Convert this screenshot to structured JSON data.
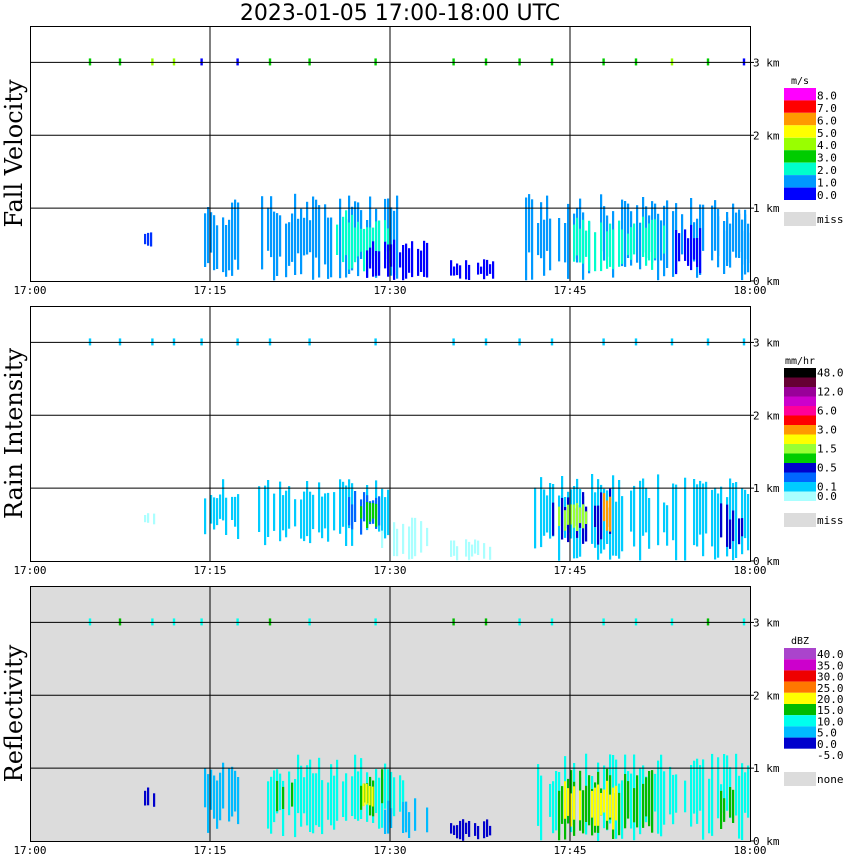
{
  "title": "2023-01-05  17:00-18:00 UTC",
  "colors": {
    "panel_bg_default": "#ffffff",
    "panel_bg_reflectivity": "#dcdcdc",
    "grid": "#000000"
  },
  "x_axis": {
    "ticks": [
      "17:00",
      "17:15",
      "17:30",
      "17:45",
      "18:00"
    ],
    "domain_minutes": [
      0,
      60
    ]
  },
  "y_axis": {
    "ticks": [
      "0 km",
      "1 km",
      "2 km",
      "3 km"
    ],
    "domain_km": [
      0,
      3.5
    ]
  },
  "chart_data": [
    {
      "type": "heatmap",
      "ylabel": "Fall Velocity",
      "legend_unit": "m/s",
      "legend": [
        {
          "label": "8.0",
          "color": "#ff00ff"
        },
        {
          "label": "7.0",
          "color": "#ff0000"
        },
        {
          "label": "6.0",
          "color": "#ff9900"
        },
        {
          "label": "5.0",
          "color": "#ffff00"
        },
        {
          "label": "4.0",
          "color": "#99ff00"
        },
        {
          "label": "3.0",
          "color": "#00cc00"
        },
        {
          "label": "2.0",
          "color": "#00ffcc"
        },
        {
          "label": "1.0",
          "color": "#0099ff"
        },
        {
          "label": "0.0",
          "color": "#0000ff"
        },
        {
          "label": "miss",
          "color": "#dcdcdc"
        }
      ],
      "echo_regions": [
        {
          "t": [
            9.5,
            10.5
          ],
          "h": [
            0.45,
            0.75
          ],
          "color": "#0033ff"
        },
        {
          "t": [
            14.5,
            17.5
          ],
          "h": [
            0.0,
            1.15
          ],
          "color": "#0099ff"
        },
        {
          "t": [
            19.0,
            31.0
          ],
          "h": [
            0.0,
            1.2
          ],
          "color": "#0099ff"
        },
        {
          "t": [
            25.5,
            30.0
          ],
          "h": [
            0.1,
            1.0
          ],
          "color": "#00ffcc"
        },
        {
          "t": [
            28.0,
            33.0
          ],
          "h": [
            0.0,
            0.6
          ],
          "color": "#0000ff"
        },
        {
          "t": [
            35.0,
            38.5
          ],
          "h": [
            0.0,
            0.3
          ],
          "color": "#0000ff"
        },
        {
          "t": [
            41.0,
            60.0
          ],
          "h": [
            0.0,
            1.2
          ],
          "color": "#0099ff"
        },
        {
          "t": [
            45.0,
            53.0
          ],
          "h": [
            0.1,
            0.9
          ],
          "color": "#00ffcc"
        },
        {
          "t": [
            53.5,
            56.5
          ],
          "h": [
            0.0,
            0.85
          ],
          "color": "#0000ff"
        },
        {
          "t": [
            57.0,
            60.0
          ],
          "h": [
            0.0,
            1.0
          ],
          "color": "#0099ff"
        }
      ],
      "top_marks": [
        {
          "t": 5.0,
          "color": "#00cc00"
        },
        {
          "t": 7.5,
          "color": "#00cc00"
        },
        {
          "t": 10.2,
          "color": "#99ff00"
        },
        {
          "t": 12.0,
          "color": "#99ff00"
        },
        {
          "t": 14.3,
          "color": "#0000ff"
        },
        {
          "t": 17.3,
          "color": "#0000ff"
        },
        {
          "t": 20.0,
          "color": "#00cc00"
        },
        {
          "t": 23.3,
          "color": "#00cc00"
        },
        {
          "t": 28.8,
          "color": "#00cc00"
        },
        {
          "t": 35.3,
          "color": "#00cc00"
        },
        {
          "t": 38.0,
          "color": "#00cc00"
        },
        {
          "t": 40.8,
          "color": "#00cc00"
        },
        {
          "t": 43.5,
          "color": "#00cc00"
        },
        {
          "t": 47.8,
          "color": "#00cc00"
        },
        {
          "t": 50.5,
          "color": "#00cc00"
        },
        {
          "t": 53.5,
          "color": "#99ff00"
        },
        {
          "t": 56.5,
          "color": "#00cc00"
        },
        {
          "t": 59.5,
          "color": "#0000ff"
        }
      ]
    },
    {
      "type": "heatmap",
      "ylabel": "Rain Intensity",
      "legend_unit": "mm/hr",
      "legend": [
        {
          "label": "48.0",
          "color": "#000000"
        },
        {
          "label": "",
          "color": "#660033"
        },
        {
          "label": "12.0",
          "color": "#990099"
        },
        {
          "label": "",
          "color": "#cc00cc"
        },
        {
          "label": "6.0",
          "color": "#ff0099"
        },
        {
          "label": "",
          "color": "#ff0000"
        },
        {
          "label": "3.0",
          "color": "#ff9900"
        },
        {
          "label": "",
          "color": "#ffff00"
        },
        {
          "label": "1.5",
          "color": "#99ff33"
        },
        {
          "label": "",
          "color": "#00cc00"
        },
        {
          "label": "0.5",
          "color": "#0000cc"
        },
        {
          "label": "",
          "color": "#0066ff"
        },
        {
          "label": "0.1",
          "color": "#00ccff"
        },
        {
          "label": "0.0",
          "color": "#aaffff"
        },
        {
          "label": "miss",
          "color": "#dcdcdc"
        }
      ],
      "echo_regions": [
        {
          "t": [
            9.5,
            10.5
          ],
          "h": [
            0.45,
            0.7
          ],
          "color": "#aaffff"
        },
        {
          "t": [
            14.5,
            17.5
          ],
          "h": [
            0.3,
            1.15
          ],
          "color": "#00ccff"
        },
        {
          "t": [
            19.0,
            30.0
          ],
          "h": [
            0.2,
            1.15
          ],
          "color": "#00ccff"
        },
        {
          "t": [
            26.5,
            29.5
          ],
          "h": [
            0.3,
            1.0
          ],
          "color": "#0066ff"
        },
        {
          "t": [
            27.5,
            28.8
          ],
          "h": [
            0.45,
            0.85
          ],
          "color": "#00cc00"
        },
        {
          "t": [
            29.0,
            33.0
          ],
          "h": [
            0.0,
            0.6
          ],
          "color": "#aaffff"
        },
        {
          "t": [
            35.0,
            38.5
          ],
          "h": [
            0.0,
            0.3
          ],
          "color": "#aaffff"
        },
        {
          "t": [
            42.0,
            53.0
          ],
          "h": [
            0.0,
            1.2
          ],
          "color": "#00ccff"
        },
        {
          "t": [
            43.5,
            48.5
          ],
          "h": [
            0.2,
            1.0
          ],
          "color": "#0000cc"
        },
        {
          "t": [
            44.0,
            46.5
          ],
          "h": [
            0.4,
            0.8
          ],
          "color": "#99ff33"
        },
        {
          "t": [
            47.0,
            48.5
          ],
          "h": [
            0.4,
            0.95
          ],
          "color": "#ff9900"
        },
        {
          "t": [
            53.0,
            60.0
          ],
          "h": [
            0.0,
            1.15
          ],
          "color": "#00ccff"
        },
        {
          "t": [
            57.5,
            60.0
          ],
          "h": [
            0.1,
            0.8
          ],
          "color": "#0000cc"
        }
      ],
      "top_marks": [
        {
          "t": 5.0,
          "color": "#00ccff"
        },
        {
          "t": 7.5,
          "color": "#00ccff"
        },
        {
          "t": 10.2,
          "color": "#00ccff"
        },
        {
          "t": 12.0,
          "color": "#00ccff"
        },
        {
          "t": 14.3,
          "color": "#00ccff"
        },
        {
          "t": 17.3,
          "color": "#00ccff"
        },
        {
          "t": 20.0,
          "color": "#00ccff"
        },
        {
          "t": 23.3,
          "color": "#00ccff"
        },
        {
          "t": 28.8,
          "color": "#00ccff"
        },
        {
          "t": 35.3,
          "color": "#00ccff"
        },
        {
          "t": 38.0,
          "color": "#00ccff"
        },
        {
          "t": 40.8,
          "color": "#00ccff"
        },
        {
          "t": 43.5,
          "color": "#00ccff"
        },
        {
          "t": 47.8,
          "color": "#00ccff"
        },
        {
          "t": 50.5,
          "color": "#00ccff"
        },
        {
          "t": 53.5,
          "color": "#00ccff"
        },
        {
          "t": 56.5,
          "color": "#00ccff"
        },
        {
          "t": 59.5,
          "color": "#00ccff"
        }
      ]
    },
    {
      "type": "heatmap",
      "ylabel": "Reflectivity",
      "legend_unit": "dBZ",
      "legend": [
        {
          "label": "40.0",
          "color": "#aa44cc"
        },
        {
          "label": "35.0",
          "color": "#cc00cc"
        },
        {
          "label": "30.0",
          "color": "#ee0000"
        },
        {
          "label": "25.0",
          "color": "#ff7700"
        },
        {
          "label": "20.0",
          "color": "#ffff00"
        },
        {
          "label": "15.0",
          "color": "#00bb00"
        },
        {
          "label": "10.0",
          "color": "#00ffee"
        },
        {
          "label": "5.0",
          "color": "#00bbff"
        },
        {
          "label": "0.0",
          "color": "#0000cc"
        },
        {
          "label": "-5.0",
          "color": "#ffffff"
        },
        {
          "label": "none",
          "color": "#dcdcdc"
        }
      ],
      "echo_regions": [
        {
          "t": [
            9.5,
            10.5
          ],
          "h": [
            0.45,
            0.75
          ],
          "color": "#0000cc"
        },
        {
          "t": [
            14.5,
            17.5
          ],
          "h": [
            0.1,
            1.15
          ],
          "color": "#00bbff"
        },
        {
          "t": [
            19.0,
            31.0
          ],
          "h": [
            0.05,
            1.2
          ],
          "color": "#00ffee"
        },
        {
          "t": [
            20.5,
            22.0
          ],
          "h": [
            0.4,
            0.9
          ],
          "color": "#00bb00"
        },
        {
          "t": [
            27.0,
            29.5
          ],
          "h": [
            0.3,
            1.0
          ],
          "color": "#00bb00"
        },
        {
          "t": [
            27.7,
            28.7
          ],
          "h": [
            0.45,
            0.8
          ],
          "color": "#ffff00"
        },
        {
          "t": [
            29.0,
            33.0
          ],
          "h": [
            0.0,
            0.6
          ],
          "color": "#00bbff"
        },
        {
          "t": [
            35.0,
            38.5
          ],
          "h": [
            0.0,
            0.3
          ],
          "color": "#0000cc"
        },
        {
          "t": [
            42.0,
            60.0
          ],
          "h": [
            0.0,
            1.2
          ],
          "color": "#00ffee"
        },
        {
          "t": [
            44.0,
            52.0
          ],
          "h": [
            0.0,
            1.0
          ],
          "color": "#00bb00"
        },
        {
          "t": [
            44.5,
            49.0
          ],
          "h": [
            0.15,
            0.9
          ],
          "color": "#ffff00"
        },
        {
          "t": [
            57.5,
            60.0
          ],
          "h": [
            0.1,
            0.8
          ],
          "color": "#00bb00"
        }
      ],
      "top_marks": [
        {
          "t": 5.0,
          "color": "#00ffee"
        },
        {
          "t": 7.5,
          "color": "#00bb00"
        },
        {
          "t": 10.2,
          "color": "#00ffee"
        },
        {
          "t": 12.0,
          "color": "#00ffee"
        },
        {
          "t": 14.3,
          "color": "#00ffee"
        },
        {
          "t": 17.3,
          "color": "#00ffee"
        },
        {
          "t": 20.0,
          "color": "#00bb00"
        },
        {
          "t": 23.3,
          "color": "#00ffee"
        },
        {
          "t": 28.8,
          "color": "#00ffee"
        },
        {
          "t": 35.3,
          "color": "#00bb00"
        },
        {
          "t": 38.0,
          "color": "#00bb00"
        },
        {
          "t": 40.8,
          "color": "#00ffee"
        },
        {
          "t": 43.5,
          "color": "#00ffee"
        },
        {
          "t": 47.8,
          "color": "#00ffee"
        },
        {
          "t": 50.5,
          "color": "#00ffee"
        },
        {
          "t": 53.5,
          "color": "#00ffee"
        },
        {
          "t": 56.5,
          "color": "#00bb00"
        },
        {
          "t": 59.5,
          "color": "#00ffee"
        }
      ]
    }
  ]
}
